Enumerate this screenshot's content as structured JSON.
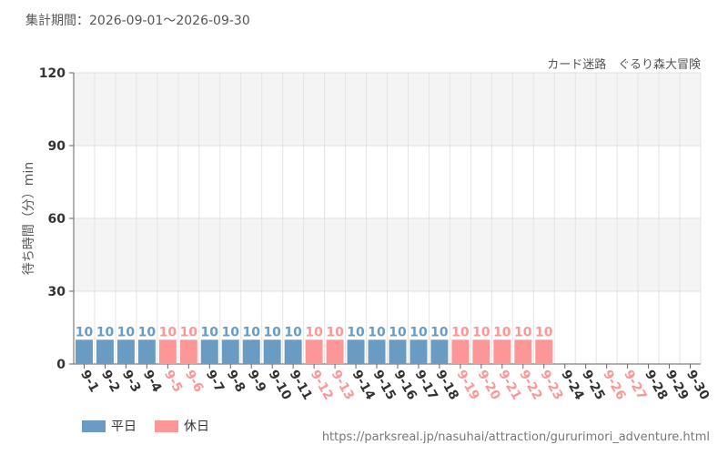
{
  "header": {
    "period_label": "集計期間：2026-09-01～2026-09-30"
  },
  "source_url": "https://parksreal.jp/nasuhai/attraction/gururimori_adventure.html",
  "colors": {
    "weekday": "#6a9bc3",
    "holiday": "#fd9696",
    "weekday_label": "#6a9bc3",
    "holiday_label": "#fd9696",
    "axis_text": "#333333"
  },
  "chart_data": {
    "type": "bar",
    "title": "カード迷路　ぐるり森大冒険",
    "ylabel": "待ち時間（分）min",
    "xlabel": "",
    "ylim": [
      0,
      120
    ],
    "yticks": [
      0,
      30,
      60,
      90,
      120
    ],
    "grid": true,
    "legend_position": "bottom-left",
    "categories": [
      "9-1",
      "9-2",
      "9-3",
      "9-4",
      "9-5",
      "9-6",
      "9-7",
      "9-8",
      "9-9",
      "9-10",
      "9-11",
      "9-12",
      "9-13",
      "9-14",
      "9-15",
      "9-16",
      "9-17",
      "9-18",
      "9-19",
      "9-20",
      "9-21",
      "9-22",
      "9-23",
      "9-24",
      "9-25",
      "9-26",
      "9-27",
      "9-28",
      "9-29",
      "9-30"
    ],
    "day_types": [
      "weekday",
      "weekday",
      "weekday",
      "weekday",
      "holiday",
      "holiday",
      "weekday",
      "weekday",
      "weekday",
      "weekday",
      "weekday",
      "holiday",
      "holiday",
      "weekday",
      "weekday",
      "weekday",
      "weekday",
      "weekday",
      "holiday",
      "holiday",
      "holiday",
      "holiday",
      "holiday",
      "weekday",
      "weekday",
      "holiday",
      "holiday",
      "weekday",
      "weekday",
      "weekday"
    ],
    "values": [
      10,
      10,
      10,
      10,
      10,
      10,
      10,
      10,
      10,
      10,
      10,
      10,
      10,
      10,
      10,
      10,
      10,
      10,
      10,
      10,
      10,
      10,
      10,
      null,
      null,
      null,
      null,
      null,
      null,
      null
    ],
    "series": [
      {
        "name": "平日",
        "key": "weekday"
      },
      {
        "name": "休日",
        "key": "holiday"
      }
    ]
  }
}
